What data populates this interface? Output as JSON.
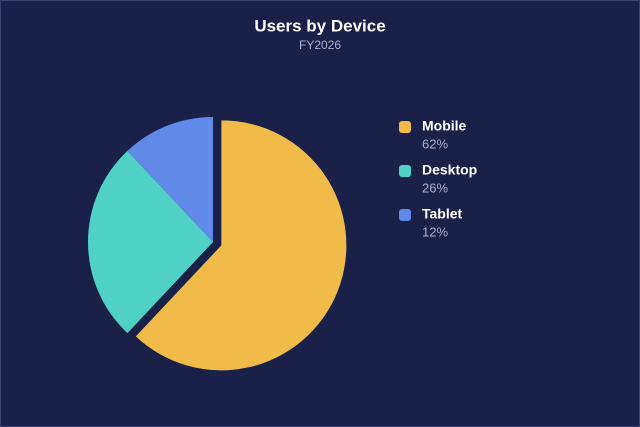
{
  "chart_data": {
    "type": "pie",
    "title": "Users by Device",
    "subtitle": "FY2026",
    "categories": [
      "Mobile",
      "Desktop",
      "Tablet"
    ],
    "values": [
      62,
      26,
      12
    ],
    "value_labels": [
      "62%",
      "26%",
      "12%"
    ],
    "colors": [
      "#f0bb48",
      "#4fd1c5",
      "#6189e8"
    ]
  }
}
